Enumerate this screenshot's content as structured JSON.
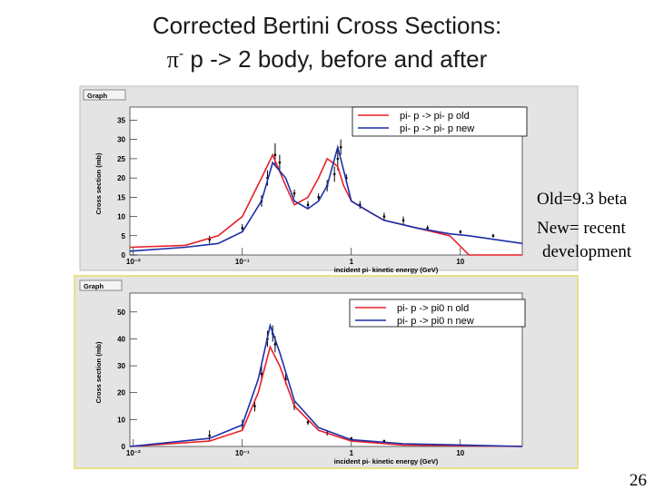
{
  "slide": {
    "title_line1": "Corrected Bertini Cross Sections:",
    "title_pi": "π",
    "title_sup": "-",
    "title_rest": " p -> 2 body,  before and after",
    "note_line1": "Old=9.3 beta",
    "note_line2": "New= recent",
    "note_line3": "development",
    "page_number": "26"
  },
  "chart_data": [
    {
      "type": "line",
      "frame_label": "Graph",
      "xlabel": "incident pi- kinetic energy (GeV)",
      "ylabel": "Cross section (mb)",
      "xscale": "log",
      "xlim": [
        0.0093,
        37
      ],
      "xticks": [
        {
          "value": 0.01,
          "label": "10⁻²"
        },
        {
          "value": 0.1,
          "label": "10⁻¹"
        },
        1,
        10
      ],
      "ylim": [
        0,
        37
      ],
      "yticks": [
        0,
        5,
        10,
        15,
        20,
        25,
        30,
        35
      ],
      "legend": "upper right",
      "x": [
        0.0093,
        0.03,
        0.06,
        0.1,
        0.15,
        0.19,
        0.25,
        0.3,
        0.4,
        0.5,
        0.6,
        0.75,
        0.85,
        1,
        1.5,
        2,
        4,
        8,
        12,
        37
      ],
      "series": [
        {
          "name": "pi- p -> pi- p old",
          "color": "#e8202a",
          "values": [
            2,
            2.5,
            5,
            10,
            20,
            26,
            18,
            13,
            15,
            20,
            25,
            23,
            18,
            14,
            11,
            9,
            7,
            5,
            0,
            0
          ]
        },
        {
          "name": "pi- p -> pi- p new",
          "color": "#1c2fa8",
          "values": [
            1,
            2,
            3,
            6,
            14,
            24,
            20,
            14,
            12,
            14,
            18,
            28,
            22,
            14,
            11,
            9,
            7,
            5.5,
            5,
            3
          ]
        }
      ],
      "points": {
        "color": "#000000",
        "x": [
          0.05,
          0.1,
          0.15,
          0.17,
          0.2,
          0.22,
          0.3,
          0.4,
          0.5,
          0.6,
          0.7,
          0.75,
          0.8,
          0.9,
          1.2,
          2,
          3,
          5,
          10,
          20
        ],
        "values": [
          4,
          7,
          14,
          20,
          26,
          24,
          16,
          13,
          15,
          18,
          21,
          25,
          28,
          20,
          13,
          10,
          9,
          7,
          6,
          5
        ],
        "errors": [
          1,
          1,
          1.5,
          2,
          3,
          2,
          1,
          1,
          1,
          1.5,
          2,
          3,
          2,
          1,
          1,
          1,
          1,
          0.7,
          0.5,
          0.5
        ]
      }
    },
    {
      "type": "line",
      "frame_label": "Graph",
      "xlabel": "incident pi- kinetic energy (GeV)",
      "ylabel": "Cross section (mb)",
      "xscale": "log",
      "xlim": [
        0.0093,
        37
      ],
      "xticks": [
        {
          "value": 0.01,
          "label": "10⁻²"
        },
        {
          "value": 0.1,
          "label": "10⁻¹"
        },
        1,
        10
      ],
      "ylim": [
        0,
        55
      ],
      "yticks": [
        0,
        10,
        20,
        30,
        40,
        50
      ],
      "legend": "upper right",
      "x": [
        0.0093,
        0.05,
        0.1,
        0.14,
        0.18,
        0.22,
        0.3,
        0.5,
        1,
        3,
        37
      ],
      "series": [
        {
          "name": "pi- p -> pi0 n old",
          "color": "#e8202a",
          "values": [
            0,
            2,
            6,
            20,
            37,
            30,
            15,
            6,
            2,
            0.5,
            0
          ]
        },
        {
          "name": "pi- p -> pi0 n new",
          "color": "#1c2fa8",
          "values": [
            0,
            3,
            8,
            25,
            45,
            35,
            17,
            7,
            2.5,
            1,
            0
          ]
        }
      ],
      "points": {
        "color": "#000000",
        "x": [
          0.05,
          0.1,
          0.13,
          0.15,
          0.17,
          0.19,
          0.2,
          0.25,
          0.3,
          0.4,
          0.6,
          1,
          2
        ],
        "values": [
          4,
          8,
          15,
          27,
          40,
          42,
          38,
          25,
          15,
          9,
          5,
          3,
          2
        ],
        "errors": [
          2,
          2,
          2,
          3,
          3,
          3,
          3,
          2,
          1.5,
          1,
          1,
          0.5,
          0.5
        ]
      }
    }
  ]
}
